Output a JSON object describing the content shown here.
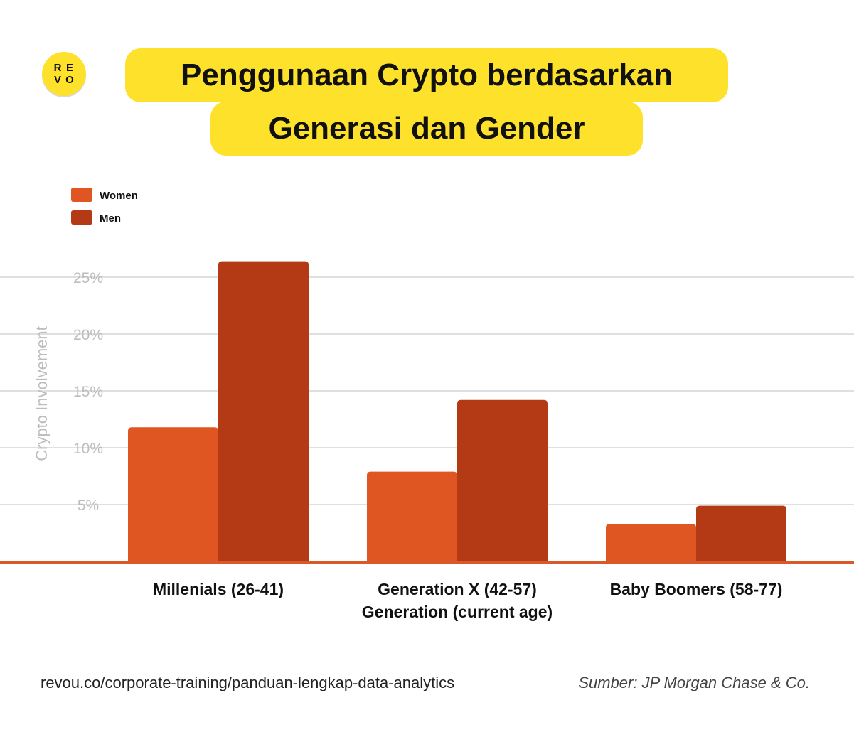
{
  "logo": {
    "letters": [
      "R",
      "E",
      "V",
      "O"
    ],
    "color": "#fde12a"
  },
  "title": {
    "line1": "Penggunaan Crypto berdasarkan",
    "line2": "Generasi dan Gender",
    "background_color": "#fde12a"
  },
  "chart_data": {
    "type": "bar",
    "categories": [
      [
        "Millenials (26-41)"
      ],
      [
        "Generation X (42-57)",
        "Generation (current age)"
      ],
      [
        "Baby Boomers (58-77)"
      ]
    ],
    "series": [
      {
        "name": "Women",
        "values": [
          11.8,
          7.9,
          3.3
        ],
        "color": "#e05622"
      },
      {
        "name": "Men",
        "values": [
          26.4,
          14.2,
          4.9
        ],
        "color": "#b33a14"
      }
    ],
    "ylabel": "Crypto Involvement",
    "yticks": [
      5,
      10,
      15,
      20,
      25
    ],
    "ytick_labels": [
      "5%",
      "10%",
      "15%",
      "20%",
      "25%"
    ],
    "ylim": [
      0,
      27
    ],
    "grid": true,
    "legend_position": "top-left"
  },
  "footer": {
    "url": "revou.co/corporate-training/panduan-lengkap-data-analytics",
    "source": "Sumber: JP Morgan Chase & Co."
  }
}
